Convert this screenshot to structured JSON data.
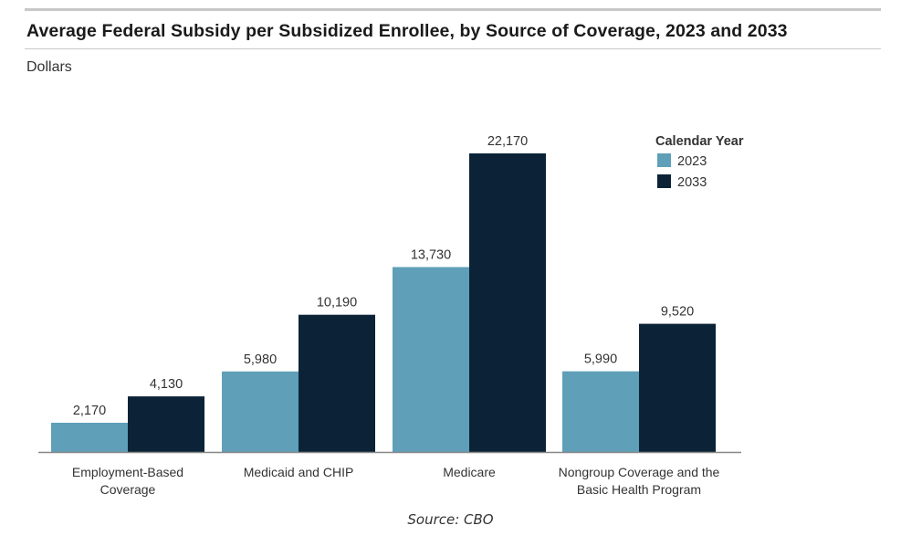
{
  "title": "Average Federal Subsidy per Subsidized Enrollee, by Source of Coverage, 2023 and 2033",
  "subtitle": "Dollars",
  "source": "Source: CBO",
  "colors": {
    "series_2023": "#5f9fb8",
    "series_2033": "#0c2337",
    "axis": "#888888"
  },
  "chart_data": {
    "type": "bar",
    "title": "Average Federal Subsidy per Subsidized Enrollee, by Source of Coverage, 2023 and 2033",
    "ylabel": "Dollars",
    "xlabel": "",
    "ylim": [
      0,
      22170
    ],
    "categories": [
      [
        "Employment-Based",
        "Coverage"
      ],
      [
        "Medicaid and CHIP"
      ],
      [
        "Medicare"
      ],
      [
        "Nongroup Coverage and the",
        "Basic Health Program"
      ]
    ],
    "legend_title": "Calendar Year",
    "legend_position": "top-right",
    "grid": false,
    "series": [
      {
        "name": "2023",
        "values": [
          2170,
          5980,
          13730,
          5990
        ],
        "labels": [
          "2,170",
          "5,980",
          "13,730",
          "5,990"
        ]
      },
      {
        "name": "2033",
        "values": [
          4130,
          10190,
          22170,
          9520
        ],
        "labels": [
          "4,130",
          "10,190",
          "22,170",
          "9,520"
        ]
      }
    ]
  }
}
